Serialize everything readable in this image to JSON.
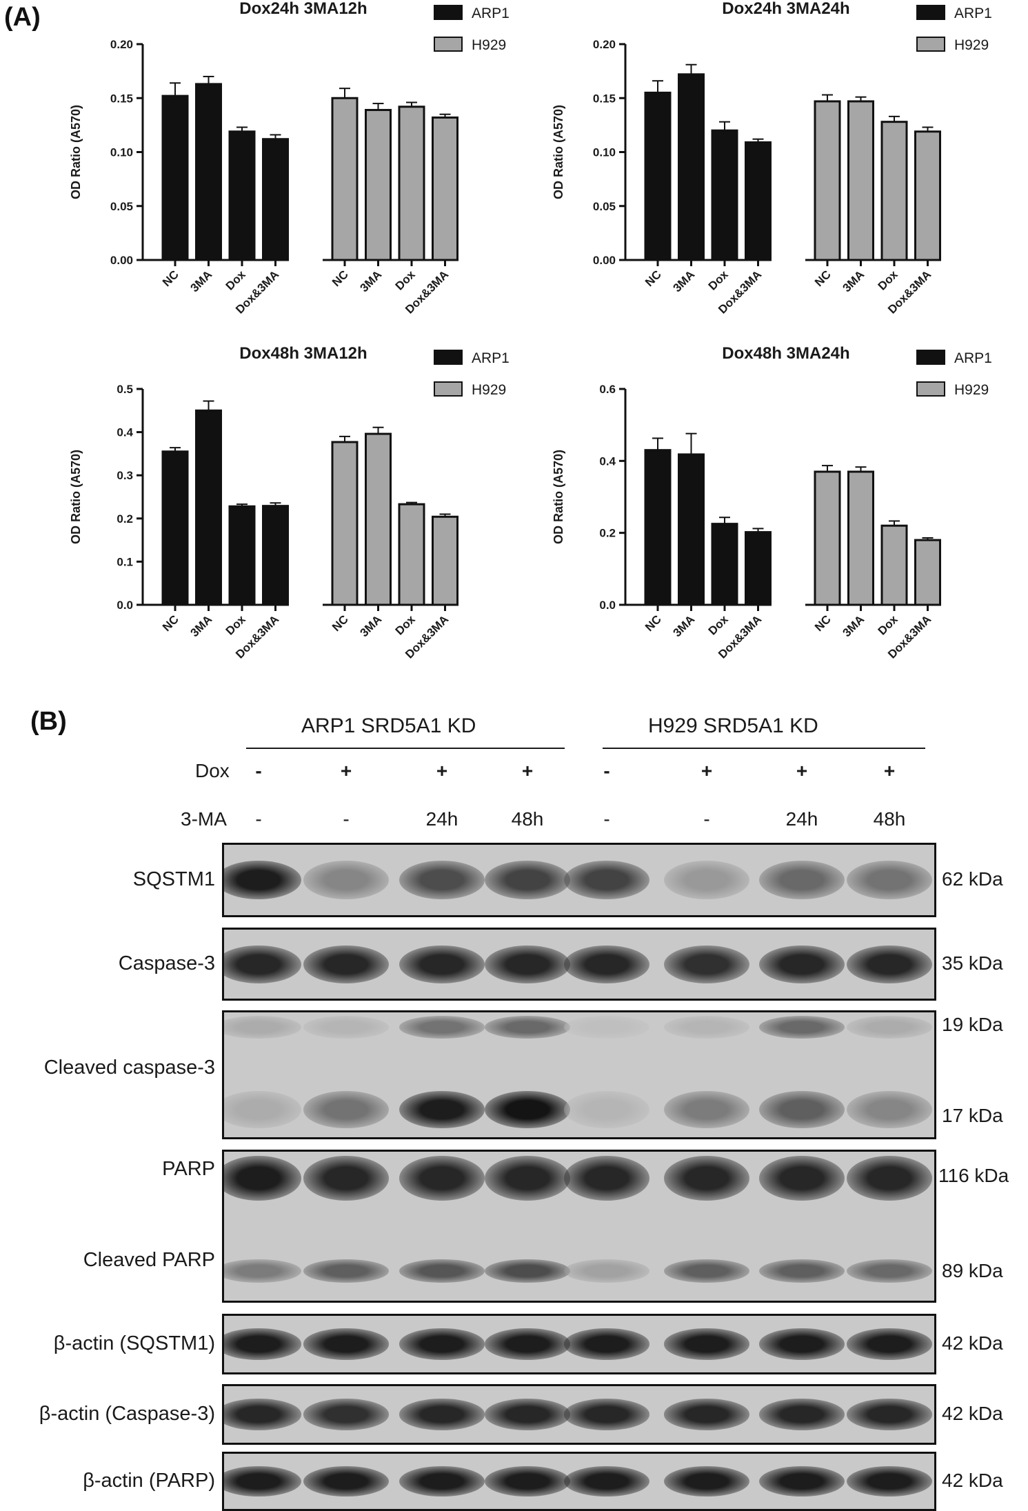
{
  "panel_a_label": "(A)",
  "panel_b_label": "(B)",
  "chart_data": [
    {
      "type": "bar",
      "title": "Dox24h 3MA12h",
      "ylabel": "OD Ratio (A570)",
      "ylim": [
        0,
        0.2
      ],
      "yticks": [
        "0.00",
        "0.05",
        "0.10",
        "0.15",
        "0.20"
      ],
      "categories": [
        "NC",
        "3MA",
        "Dox",
        "Dox&3MA"
      ],
      "legend": [
        "ARP1",
        "H929"
      ],
      "colors": [
        "#111111",
        "#a6a6a6"
      ],
      "series": [
        {
          "name": "ARP1",
          "values": [
            0.152,
            0.163,
            0.119,
            0.112
          ],
          "errors": [
            0.012,
            0.007,
            0.004,
            0.004
          ]
        },
        {
          "name": "H929",
          "values": [
            0.15,
            0.139,
            0.142,
            0.132
          ],
          "errors": [
            0.009,
            0.006,
            0.004,
            0.003
          ]
        }
      ]
    },
    {
      "type": "bar",
      "title": "Dox24h 3MA24h",
      "ylabel": "OD Ratio (A570)",
      "ylim": [
        0,
        0.2
      ],
      "yticks": [
        "0.00",
        "0.05",
        "0.10",
        "0.15",
        "0.20"
      ],
      "categories": [
        "NC",
        "3MA",
        "Dox",
        "Dox&3MA"
      ],
      "legend": [
        "ARP1",
        "H929"
      ],
      "colors": [
        "#111111",
        "#a6a6a6"
      ],
      "series": [
        {
          "name": "ARP1",
          "values": [
            0.155,
            0.172,
            0.12,
            0.109
          ],
          "errors": [
            0.011,
            0.009,
            0.008,
            0.003
          ]
        },
        {
          "name": "H929",
          "values": [
            0.147,
            0.147,
            0.128,
            0.119
          ],
          "errors": [
            0.006,
            0.004,
            0.005,
            0.004
          ]
        }
      ]
    },
    {
      "type": "bar",
      "title": "Dox48h 3MA12h",
      "ylabel": "OD Ratio (A570)",
      "ylim": [
        0,
        0.5
      ],
      "yticks": [
        "0.0",
        "0.1",
        "0.2",
        "0.3",
        "0.4",
        "0.5"
      ],
      "categories": [
        "NC",
        "3MA",
        "Dox",
        "Dox&3MA"
      ],
      "legend": [
        "ARP1",
        "H929"
      ],
      "colors": [
        "#111111",
        "#a6a6a6"
      ],
      "series": [
        {
          "name": "ARP1",
          "values": [
            0.355,
            0.45,
            0.228,
            0.229
          ],
          "errors": [
            0.009,
            0.022,
            0.005,
            0.007
          ]
        },
        {
          "name": "H929",
          "values": [
            0.377,
            0.396,
            0.233,
            0.204
          ],
          "errors": [
            0.013,
            0.015,
            0.004,
            0.006
          ]
        }
      ]
    },
    {
      "type": "bar",
      "title": "Dox48h 3MA24h",
      "ylabel": "OD Ratio (A570)",
      "ylim": [
        0,
        0.6
      ],
      "yticks": [
        "0.0",
        "0.2",
        "0.4",
        "0.6"
      ],
      "categories": [
        "NC",
        "3MA",
        "Dox",
        "Dox&3MA"
      ],
      "legend": [
        "ARP1",
        "H929"
      ],
      "colors": [
        "#111111",
        "#a6a6a6"
      ],
      "series": [
        {
          "name": "ARP1",
          "values": [
            0.43,
            0.418,
            0.225,
            0.202
          ],
          "errors": [
            0.033,
            0.058,
            0.018,
            0.01
          ]
        },
        {
          "name": "H929",
          "values": [
            0.37,
            0.37,
            0.22,
            0.18
          ],
          "errors": [
            0.017,
            0.013,
            0.013,
            0.006
          ]
        }
      ]
    }
  ],
  "blot": {
    "group_headers": [
      "ARP1 SRD5A1 KD",
      "H929 SRD5A1 KD"
    ],
    "dox_label": "Dox",
    "dox_values": [
      "-",
      "+",
      "+",
      "+",
      "-",
      "+",
      "+",
      "+"
    ],
    "ma_label": "3-MA",
    "ma_values": [
      "-",
      "-",
      "24h",
      "48h",
      "-",
      "-",
      "24h",
      "48h"
    ],
    "rows": [
      {
        "label": "SQSTM1",
        "kda": "62 kDa",
        "intensities": [
          0.9,
          0.35,
          0.65,
          0.7,
          0.7,
          0.25,
          0.5,
          0.45
        ]
      },
      {
        "label": "Caspase-3",
        "kda": "35 kDa",
        "intensities": [
          0.85,
          0.85,
          0.85,
          0.85,
          0.85,
          0.8,
          0.85,
          0.85
        ]
      },
      {
        "label": "Cleaved caspase-3",
        "kda_top": "19 kDa",
        "kda_bottom": "17 kDa",
        "top_intensities": [
          0.15,
          0.1,
          0.45,
          0.5,
          0.05,
          0.1,
          0.5,
          0.15
        ],
        "bottom_intensities": [
          0.15,
          0.45,
          0.9,
          0.95,
          0.1,
          0.4,
          0.55,
          0.35
        ]
      },
      {
        "label_top": "PARP",
        "label_bottom": "Cleaved PARP",
        "kda_top": "116 kDa",
        "kda_bottom": "89 kDa",
        "top_intensities": [
          0.9,
          0.85,
          0.85,
          0.85,
          0.85,
          0.85,
          0.85,
          0.85
        ],
        "bottom_intensities": [
          0.4,
          0.55,
          0.6,
          0.65,
          0.2,
          0.55,
          0.55,
          0.5
        ]
      },
      {
        "label": "β-actin (SQSTM1)",
        "kda": "42 kDa",
        "intensities": [
          0.9,
          0.9,
          0.9,
          0.9,
          0.9,
          0.9,
          0.9,
          0.9
        ]
      },
      {
        "label": "β-actin (Caspase-3)",
        "kda": "42 kDa",
        "intensities": [
          0.85,
          0.8,
          0.85,
          0.85,
          0.85,
          0.85,
          0.85,
          0.85
        ]
      },
      {
        "label": "β-actin (PARP)",
        "kda": "42 kDa",
        "intensities": [
          0.9,
          0.9,
          0.9,
          0.9,
          0.9,
          0.9,
          0.9,
          0.9
        ]
      }
    ]
  }
}
